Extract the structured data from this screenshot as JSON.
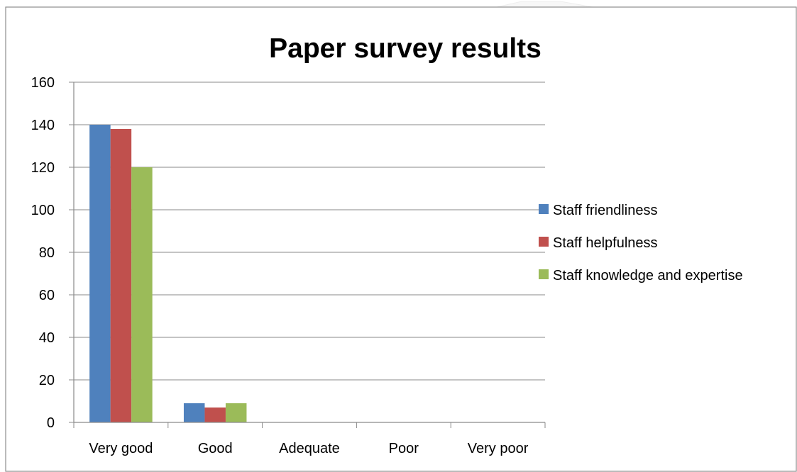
{
  "chart_data": {
    "type": "bar",
    "title": "Paper survey results",
    "xlabel": "",
    "ylabel": "",
    "categories": [
      "Very good",
      "Good",
      "Adequate",
      "Poor",
      "Very poor"
    ],
    "series": [
      {
        "name": "Staff friendliness",
        "values": [
          140,
          9,
          0,
          0,
          0
        ],
        "color": "#4F81BD"
      },
      {
        "name": "Staff helpfulness",
        "values": [
          138,
          7,
          0,
          0,
          0
        ],
        "color": "#C0504D"
      },
      {
        "name": "Staff knowledge and expertise",
        "values": [
          120,
          9,
          0,
          0,
          0
        ],
        "color": "#9BBB59"
      }
    ],
    "ylim": [
      0,
      160
    ],
    "yticks": [
      0,
      20,
      40,
      60,
      80,
      100,
      120,
      140,
      160
    ],
    "grid": true,
    "legend_position": "right"
  }
}
